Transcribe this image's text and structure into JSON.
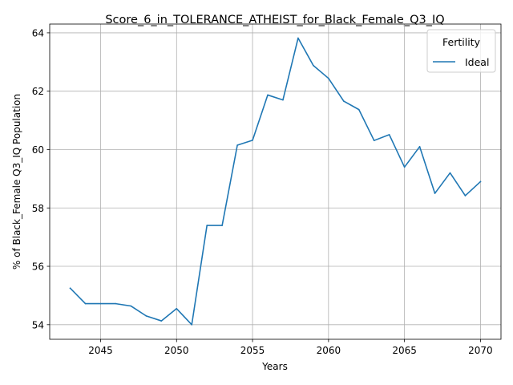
{
  "chart_data": {
    "type": "line",
    "title": "Score_6_in_TOLERANCE_ATHEIST_for_Black_Female_Q3_IQ",
    "xlabel": "Years",
    "ylabel": "% of Black_Female Q3_IQ Population",
    "xlim": [
      2041.65,
      2071.35
    ],
    "ylim": [
      53.5,
      64.3
    ],
    "xticks": [
      2045,
      2050,
      2055,
      2060,
      2065,
      2070
    ],
    "yticks": [
      54,
      56,
      58,
      60,
      62,
      64
    ],
    "grid": true,
    "legend": {
      "title": "Fertility",
      "placement": "top-right"
    },
    "series": [
      {
        "name": "Ideal",
        "color": "#1f77b4",
        "x": [
          2043,
          2044,
          2045,
          2046,
          2047,
          2048,
          2049,
          2050,
          2051,
          2052,
          2053,
          2054,
          2055,
          2056,
          2057,
          2058,
          2059,
          2060,
          2061,
          2062,
          2063,
          2064,
          2065,
          2066,
          2067,
          2068,
          2069,
          2070
        ],
        "y": [
          55.25,
          54.72,
          54.72,
          54.72,
          54.64,
          54.3,
          54.13,
          54.55,
          54.0,
          57.4,
          57.4,
          60.15,
          60.32,
          61.87,
          61.7,
          63.82,
          62.88,
          62.44,
          61.66,
          61.37,
          60.31,
          60.51,
          59.4,
          60.1,
          58.5,
          59.2,
          58.42,
          58.9
        ]
      }
    ]
  }
}
